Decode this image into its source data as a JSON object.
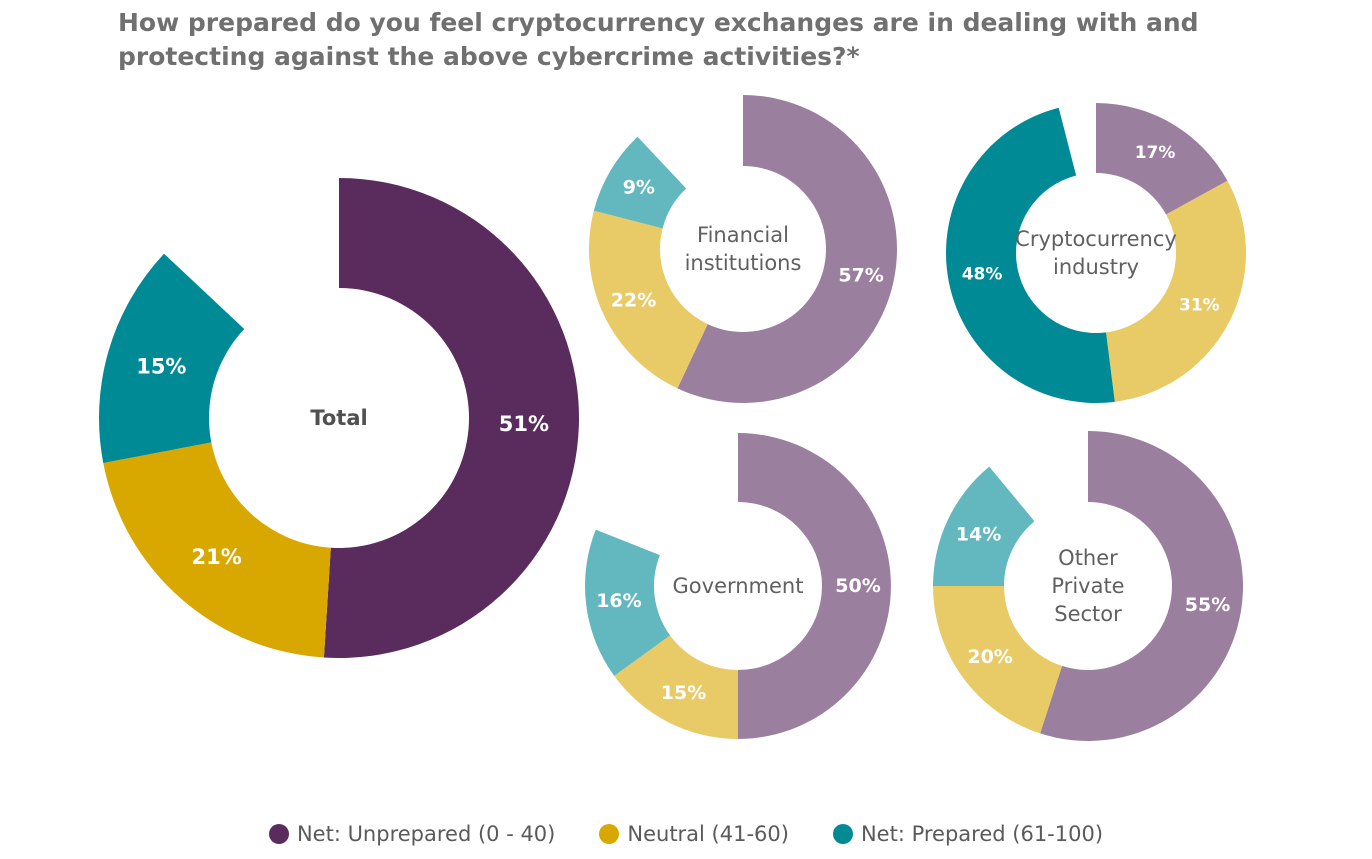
{
  "chart_data": {
    "type": "pie",
    "title": "How prepared do you feel cryptocurrency exchanges are in dealing with and protecting against the above cybercrime activities?*",
    "legend": [
      {
        "label": "Net: Unprepared (0 - 40)",
        "color": "#5a2c5e"
      },
      {
        "label": "Neutral (41-60)",
        "color": "#d9a800"
      },
      {
        "label": "Net: Prepared (61-100)",
        "color": "#008a96"
      }
    ],
    "charts": [
      {
        "id": "total",
        "center_label": [
          "Total"
        ],
        "style": "strong",
        "slices": [
          {
            "category": "Net: Unprepared (0 - 40)",
            "value": 51,
            "label": "51%",
            "color": "#5a2c5e"
          },
          {
            "category": "Neutral (41-60)",
            "value": 21,
            "label": "21%",
            "color": "#d9a800"
          },
          {
            "category": "Net: Prepared (61-100)",
            "value": 15,
            "label": "15%",
            "color": "#008a96"
          }
        ]
      },
      {
        "id": "financial-institutions",
        "center_label": [
          "Financial",
          "institutions"
        ],
        "style": "light",
        "slices": [
          {
            "category": "Net: Unprepared (0 - 40)",
            "value": 57,
            "label": "57%",
            "color": "#9a7f9e"
          },
          {
            "category": "Neutral (41-60)",
            "value": 22,
            "label": "22%",
            "color": "#e8cb66"
          },
          {
            "category": "Net: Prepared (61-100)",
            "value": 9,
            "label": "9%",
            "color": "#63b8c0"
          }
        ]
      },
      {
        "id": "cryptocurrency-industry",
        "center_label": [
          "Cryptocurrency",
          "industry"
        ],
        "style": "mixed",
        "slices": [
          {
            "category": "Net: Unprepared (0 - 40)",
            "value": 17,
            "label": "17%",
            "color": "#9a7f9e"
          },
          {
            "category": "Neutral (41-60)",
            "value": 31,
            "label": "31%",
            "color": "#e8cb66"
          },
          {
            "category": "Net: Prepared (61-100)",
            "value": 48,
            "label": "48%",
            "color": "#008a96"
          }
        ]
      },
      {
        "id": "government",
        "center_label": [
          "Government"
        ],
        "style": "light",
        "slices": [
          {
            "category": "Net: Unprepared (0 - 40)",
            "value": 50,
            "label": "50%",
            "color": "#9a7f9e"
          },
          {
            "category": "Neutral (41-60)",
            "value": 15,
            "label": "15%",
            "color": "#e8cb66"
          },
          {
            "category": "Net: Prepared (61-100)",
            "value": 16,
            "label": "16%",
            "color": "#63b8c0"
          }
        ]
      },
      {
        "id": "other-private-sector",
        "center_label": [
          "Other",
          "Private",
          "Sector"
        ],
        "style": "light",
        "slices": [
          {
            "category": "Net: Unprepared (0 - 40)",
            "value": 55,
            "label": "55%",
            "color": "#9a7f9e"
          },
          {
            "category": "Neutral (41-60)",
            "value": 20,
            "label": "20%",
            "color": "#e8cb66"
          },
          {
            "category": "Net: Prepared (61-100)",
            "value": 14,
            "label": "14%",
            "color": "#63b8c0"
          }
        ]
      }
    ]
  }
}
